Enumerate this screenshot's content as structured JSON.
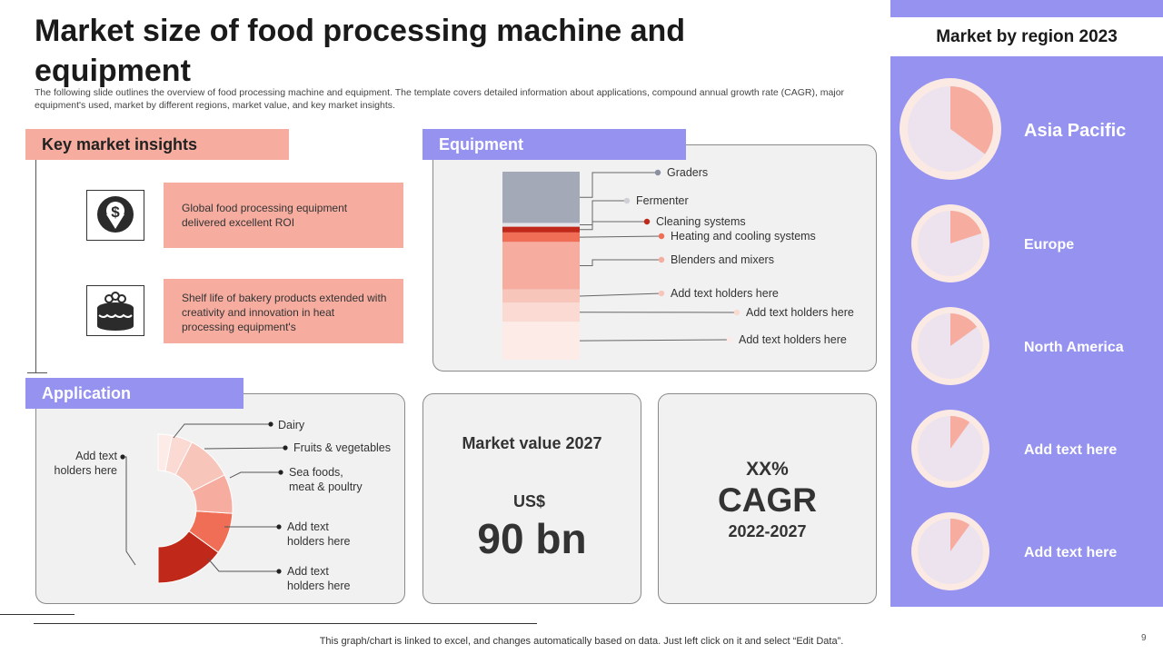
{
  "page": {
    "title": "Market size of food processing machine and equipment",
    "subtitle": "The following slide outlines the overview of food processing machine and equipment. The template covers detailed information about applications, compound annual growth rate (CAGR), major equipment's used, market by different regions, market value, and key market insights.",
    "footnote": "This graph/chart is linked to excel, and changes automatically based on data. Just left click on it and select “Edit Data”.",
    "page_number": "9"
  },
  "insights": {
    "header": "Key market insights",
    "items": [
      {
        "text": "Global food processing equipment delivered  excellent ROI",
        "icon": "dollar-down-arrow-icon"
      },
      {
        "text": "Shelf life of bakery products extended with creativity and innovation  in heat processing equipment's",
        "icon": "cake-icon"
      }
    ]
  },
  "equipment": {
    "header": "Equipment"
  },
  "application": {
    "header": "Application"
  },
  "market_value": {
    "label": "Market value 2027",
    "currency": "US$",
    "value": "90 bn"
  },
  "cagr": {
    "value": "XX%",
    "label": "CAGR",
    "period": "2022-2027"
  },
  "regions": {
    "header": "Market by region 2023"
  },
  "colors": {
    "accent_purple": "#9592f0",
    "accent_salmon": "#f6ada0",
    "dark_red": "#c0281a",
    "panel_bg": "#f1f1f1"
  },
  "chart_data": [
    {
      "type": "bar",
      "stacked": true,
      "orientation": "vertical",
      "categories": [
        "Graders",
        "Fermenter",
        "Cleaning systems",
        "Heating and cooling systems",
        "Blenders and mixers",
        "Add text holders here",
        "Add text holders here",
        "Add text holders here"
      ],
      "values": [
        27,
        2,
        3,
        5,
        25,
        7,
        10,
        20
      ],
      "colors": [
        "#a4a9b8",
        "#e3e3e8",
        "#c0281a",
        "#f06e55",
        "#f6ada0",
        "#f8c5bb",
        "#fadad3",
        "#fcebe6"
      ]
    },
    {
      "type": "pie",
      "donut": true,
      "half": true,
      "categories": [
        "Add text holders here",
        "Add text holders here",
        "Add text holders here",
        "Sea foods, meat & poultry",
        "Fruits & vegetables",
        "Dairy"
      ],
      "values": [
        30,
        18,
        17,
        20,
        9,
        6
      ],
      "colors": [
        "#c0281a",
        "#f06e55",
        "#f6ada0",
        "#f8c5bb",
        "#fadad3",
        "#fcebe6"
      ]
    },
    {
      "type": "pie",
      "categories": [
        "Asia Pacific",
        "Europe",
        "North America",
        "Add text here",
        "Add text here"
      ],
      "values": [
        35,
        20,
        15,
        10,
        10
      ],
      "remainder_color": "#ece3ee",
      "slice_color": "#f6ada0"
    }
  ]
}
